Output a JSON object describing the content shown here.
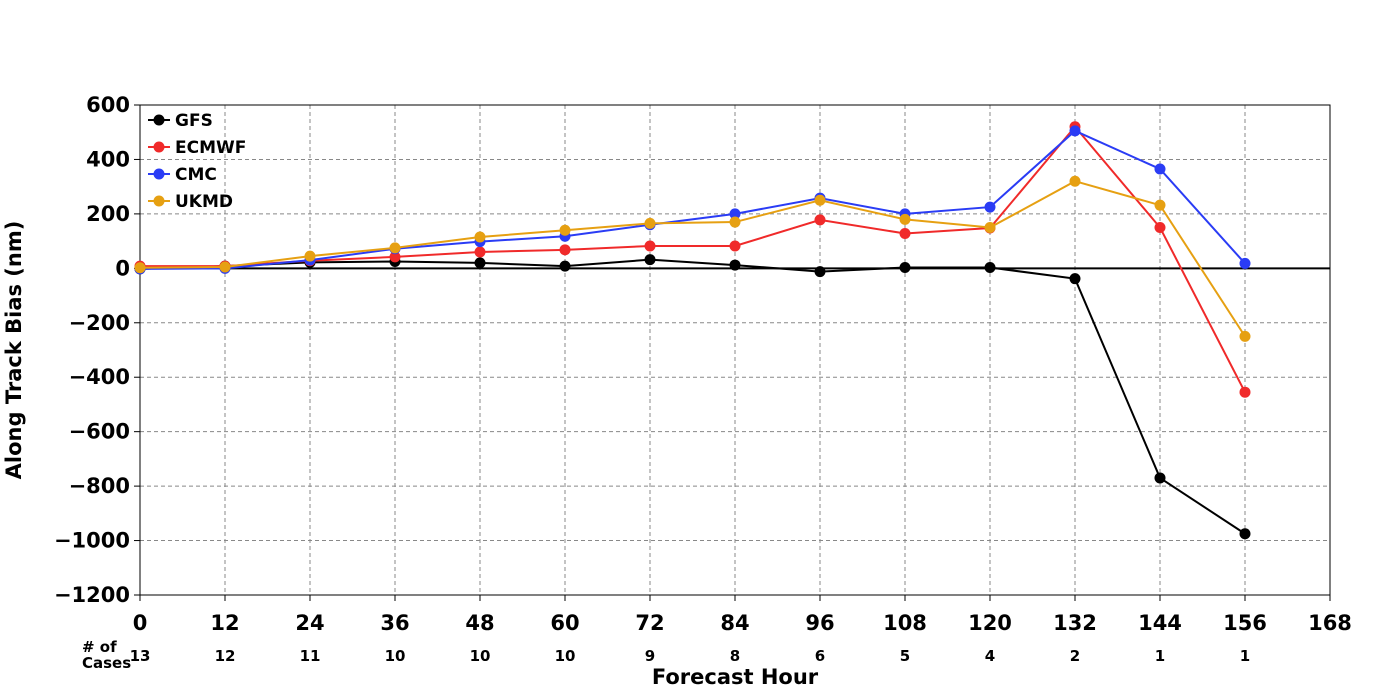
{
  "chart_data": {
    "type": "line",
    "xlabel": "Forecast Hour",
    "ylabel": "Along Track Bias (nm)",
    "xlim": [
      0,
      168
    ],
    "ylim": [
      -1200,
      600
    ],
    "xticks": [
      0,
      12,
      24,
      36,
      48,
      60,
      72,
      84,
      96,
      108,
      120,
      132,
      144,
      156,
      168
    ],
    "yticks": [
      600,
      400,
      200,
      0,
      -200,
      -400,
      -600,
      -800,
      -1000,
      -1200
    ],
    "grid": true,
    "legend_position": "top-left",
    "zero_line": true,
    "cases_label": "# of Cases",
    "cases": [
      {
        "x": 0,
        "n": "13"
      },
      {
        "x": 12,
        "n": "12"
      },
      {
        "x": 24,
        "n": "11"
      },
      {
        "x": 36,
        "n": "10"
      },
      {
        "x": 48,
        "n": "10"
      },
      {
        "x": 60,
        "n": "10"
      },
      {
        "x": 72,
        "n": "9"
      },
      {
        "x": 84,
        "n": "8"
      },
      {
        "x": 96,
        "n": "6"
      },
      {
        "x": 108,
        "n": "5"
      },
      {
        "x": 120,
        "n": "4"
      },
      {
        "x": 132,
        "n": "2"
      },
      {
        "x": 144,
        "n": "1"
      },
      {
        "x": 156,
        "n": "1"
      }
    ],
    "x": [
      0,
      12,
      24,
      36,
      48,
      60,
      72,
      84,
      96,
      108,
      120,
      132,
      144,
      156
    ],
    "series": [
      {
        "name": "GFS",
        "color": "#000000",
        "values": [
          -2,
          8,
          22,
          25,
          20,
          8,
          32,
          12,
          -12,
          3,
          3,
          -38,
          -770,
          -975
        ]
      },
      {
        "name": "ECMWF",
        "color": "#f02a2a",
        "values": [
          8,
          8,
          28,
          42,
          60,
          68,
          82,
          82,
          178,
          128,
          148,
          520,
          150,
          -455
        ]
      },
      {
        "name": "CMC",
        "color": "#2a3cf5",
        "values": [
          -2,
          0,
          30,
          72,
          98,
          118,
          160,
          200,
          258,
          200,
          225,
          505,
          365,
          18
        ]
      },
      {
        "name": "UKMD",
        "color": "#e6a012",
        "values": [
          2,
          5,
          45,
          75,
          115,
          140,
          165,
          170,
          250,
          180,
          150,
          320,
          232,
          -250
        ]
      }
    ]
  }
}
